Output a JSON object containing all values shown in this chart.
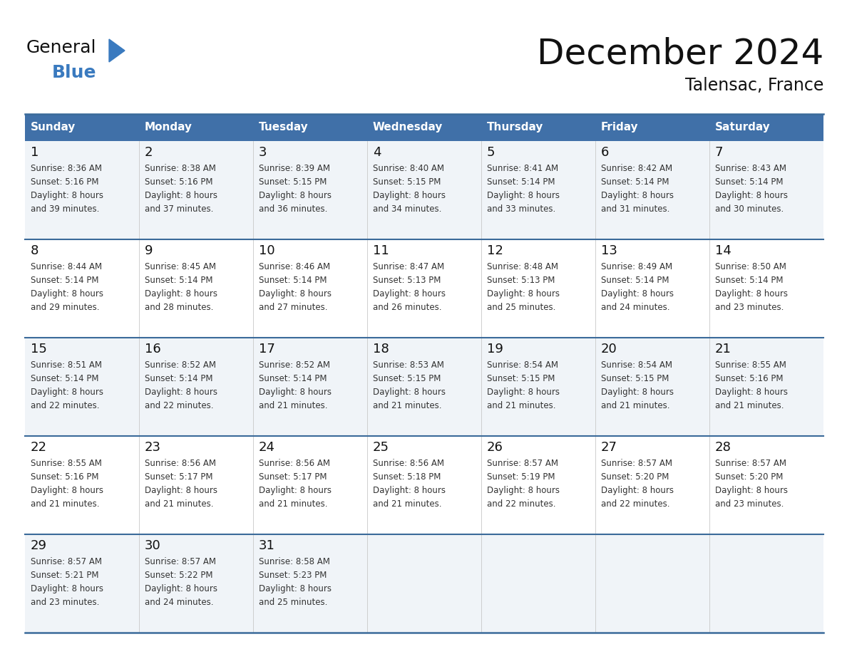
{
  "title": "December 2024",
  "subtitle": "Talensac, France",
  "header_color": "#4070a8",
  "header_text_color": "#ffffff",
  "day_names": [
    "Sunday",
    "Monday",
    "Tuesday",
    "Wednesday",
    "Thursday",
    "Friday",
    "Saturday"
  ],
  "weeks": [
    [
      {
        "day": 1,
        "sunrise": "8:36 AM",
        "sunset": "5:16 PM",
        "daylight_line1": "Daylight: 8 hours",
        "daylight_line2": "and 39 minutes."
      },
      {
        "day": 2,
        "sunrise": "8:38 AM",
        "sunset": "5:16 PM",
        "daylight_line1": "Daylight: 8 hours",
        "daylight_line2": "and 37 minutes."
      },
      {
        "day": 3,
        "sunrise": "8:39 AM",
        "sunset": "5:15 PM",
        "daylight_line1": "Daylight: 8 hours",
        "daylight_line2": "and 36 minutes."
      },
      {
        "day": 4,
        "sunrise": "8:40 AM",
        "sunset": "5:15 PM",
        "daylight_line1": "Daylight: 8 hours",
        "daylight_line2": "and 34 minutes."
      },
      {
        "day": 5,
        "sunrise": "8:41 AM",
        "sunset": "5:14 PM",
        "daylight_line1": "Daylight: 8 hours",
        "daylight_line2": "and 33 minutes."
      },
      {
        "day": 6,
        "sunrise": "8:42 AM",
        "sunset": "5:14 PM",
        "daylight_line1": "Daylight: 8 hours",
        "daylight_line2": "and 31 minutes."
      },
      {
        "day": 7,
        "sunrise": "8:43 AM",
        "sunset": "5:14 PM",
        "daylight_line1": "Daylight: 8 hours",
        "daylight_line2": "and 30 minutes."
      }
    ],
    [
      {
        "day": 8,
        "sunrise": "8:44 AM",
        "sunset": "5:14 PM",
        "daylight_line1": "Daylight: 8 hours",
        "daylight_line2": "and 29 minutes."
      },
      {
        "day": 9,
        "sunrise": "8:45 AM",
        "sunset": "5:14 PM",
        "daylight_line1": "Daylight: 8 hours",
        "daylight_line2": "and 28 minutes."
      },
      {
        "day": 10,
        "sunrise": "8:46 AM",
        "sunset": "5:14 PM",
        "daylight_line1": "Daylight: 8 hours",
        "daylight_line2": "and 27 minutes."
      },
      {
        "day": 11,
        "sunrise": "8:47 AM",
        "sunset": "5:13 PM",
        "daylight_line1": "Daylight: 8 hours",
        "daylight_line2": "and 26 minutes."
      },
      {
        "day": 12,
        "sunrise": "8:48 AM",
        "sunset": "5:13 PM",
        "daylight_line1": "Daylight: 8 hours",
        "daylight_line2": "and 25 minutes."
      },
      {
        "day": 13,
        "sunrise": "8:49 AM",
        "sunset": "5:14 PM",
        "daylight_line1": "Daylight: 8 hours",
        "daylight_line2": "and 24 minutes."
      },
      {
        "day": 14,
        "sunrise": "8:50 AM",
        "sunset": "5:14 PM",
        "daylight_line1": "Daylight: 8 hours",
        "daylight_line2": "and 23 minutes."
      }
    ],
    [
      {
        "day": 15,
        "sunrise": "8:51 AM",
        "sunset": "5:14 PM",
        "daylight_line1": "Daylight: 8 hours",
        "daylight_line2": "and 22 minutes."
      },
      {
        "day": 16,
        "sunrise": "8:52 AM",
        "sunset": "5:14 PM",
        "daylight_line1": "Daylight: 8 hours",
        "daylight_line2": "and 22 minutes."
      },
      {
        "day": 17,
        "sunrise": "8:52 AM",
        "sunset": "5:14 PM",
        "daylight_line1": "Daylight: 8 hours",
        "daylight_line2": "and 21 minutes."
      },
      {
        "day": 18,
        "sunrise": "8:53 AM",
        "sunset": "5:15 PM",
        "daylight_line1": "Daylight: 8 hours",
        "daylight_line2": "and 21 minutes."
      },
      {
        "day": 19,
        "sunrise": "8:54 AM",
        "sunset": "5:15 PM",
        "daylight_line1": "Daylight: 8 hours",
        "daylight_line2": "and 21 minutes."
      },
      {
        "day": 20,
        "sunrise": "8:54 AM",
        "sunset": "5:15 PM",
        "daylight_line1": "Daylight: 8 hours",
        "daylight_line2": "and 21 minutes."
      },
      {
        "day": 21,
        "sunrise": "8:55 AM",
        "sunset": "5:16 PM",
        "daylight_line1": "Daylight: 8 hours",
        "daylight_line2": "and 21 minutes."
      }
    ],
    [
      {
        "day": 22,
        "sunrise": "8:55 AM",
        "sunset": "5:16 PM",
        "daylight_line1": "Daylight: 8 hours",
        "daylight_line2": "and 21 minutes."
      },
      {
        "day": 23,
        "sunrise": "8:56 AM",
        "sunset": "5:17 PM",
        "daylight_line1": "Daylight: 8 hours",
        "daylight_line2": "and 21 minutes."
      },
      {
        "day": 24,
        "sunrise": "8:56 AM",
        "sunset": "5:17 PM",
        "daylight_line1": "Daylight: 8 hours",
        "daylight_line2": "and 21 minutes."
      },
      {
        "day": 25,
        "sunrise": "8:56 AM",
        "sunset": "5:18 PM",
        "daylight_line1": "Daylight: 8 hours",
        "daylight_line2": "and 21 minutes."
      },
      {
        "day": 26,
        "sunrise": "8:57 AM",
        "sunset": "5:19 PM",
        "daylight_line1": "Daylight: 8 hours",
        "daylight_line2": "and 22 minutes."
      },
      {
        "day": 27,
        "sunrise": "8:57 AM",
        "sunset": "5:20 PM",
        "daylight_line1": "Daylight: 8 hours",
        "daylight_line2": "and 22 minutes."
      },
      {
        "day": 28,
        "sunrise": "8:57 AM",
        "sunset": "5:20 PM",
        "daylight_line1": "Daylight: 8 hours",
        "daylight_line2": "and 23 minutes."
      }
    ],
    [
      {
        "day": 29,
        "sunrise": "8:57 AM",
        "sunset": "5:21 PM",
        "daylight_line1": "Daylight: 8 hours",
        "daylight_line2": "and 23 minutes."
      },
      {
        "day": 30,
        "sunrise": "8:57 AM",
        "sunset": "5:22 PM",
        "daylight_line1": "Daylight: 8 hours",
        "daylight_line2": "and 24 minutes."
      },
      {
        "day": 31,
        "sunrise": "8:58 AM",
        "sunset": "5:23 PM",
        "daylight_line1": "Daylight: 8 hours",
        "daylight_line2": "and 25 minutes."
      },
      null,
      null,
      null,
      null
    ]
  ],
  "background_color": "#ffffff",
  "cell_bg_even": "#f0f4f8",
  "cell_bg_odd": "#ffffff",
  "border_color": "#3a6a9a",
  "text_color_dark": "#111111",
  "text_color_body": "#333333",
  "logo_general_color": "#111111",
  "logo_blue_color": "#3a7abf",
  "logo_tri_color": "#3a7abf"
}
